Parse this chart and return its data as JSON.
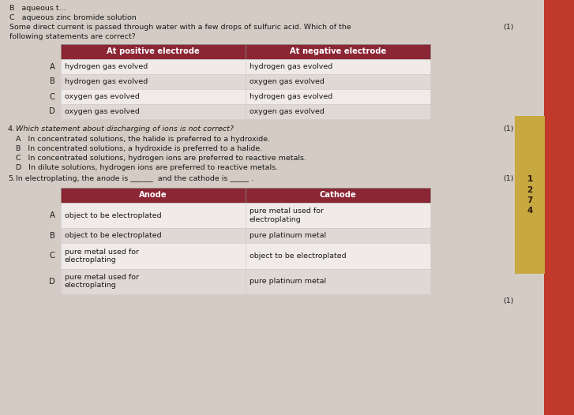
{
  "background_color": "#d4ccc4",
  "header_color": "#8b2635",
  "header_text_color": "#ffffff",
  "row_color_odd": "#f0ebe8",
  "row_color_even": "#e0d8d4",
  "text_color": "#1a1a1a",
  "table1_headers": [
    "At positive electrode",
    "At negative electrode"
  ],
  "table1_rows": [
    [
      "A",
      "hydrogen gas evolved",
      "hydrogen gas evolved"
    ],
    [
      "B",
      "hydrogen gas evolved",
      "oxygen gas evolved"
    ],
    [
      "C",
      "oxygen gas evolved",
      "hydrogen gas evolved"
    ],
    [
      "D",
      "oxygen gas evolved",
      "oxygen gas evolved"
    ]
  ],
  "table2_headers": [
    "Anode",
    "Cathode"
  ],
  "table2_rows": [
    [
      "A",
      "object to be electroplated",
      "pure metal used for\nelectroplating"
    ],
    [
      "B",
      "object to be electroplated",
      "pure platinum metal"
    ],
    [
      "C",
      "pure metal used for\nelectroplating",
      "object to be electroplated"
    ],
    [
      "D",
      "pure metal used for\nelectroplating",
      "pure platinum metal"
    ]
  ],
  "fig_width": 7.27,
  "fig_height": 5.26,
  "dpi": 100,
  "stripe_color": "#c0392b",
  "page_tab_color": "#c8a840"
}
